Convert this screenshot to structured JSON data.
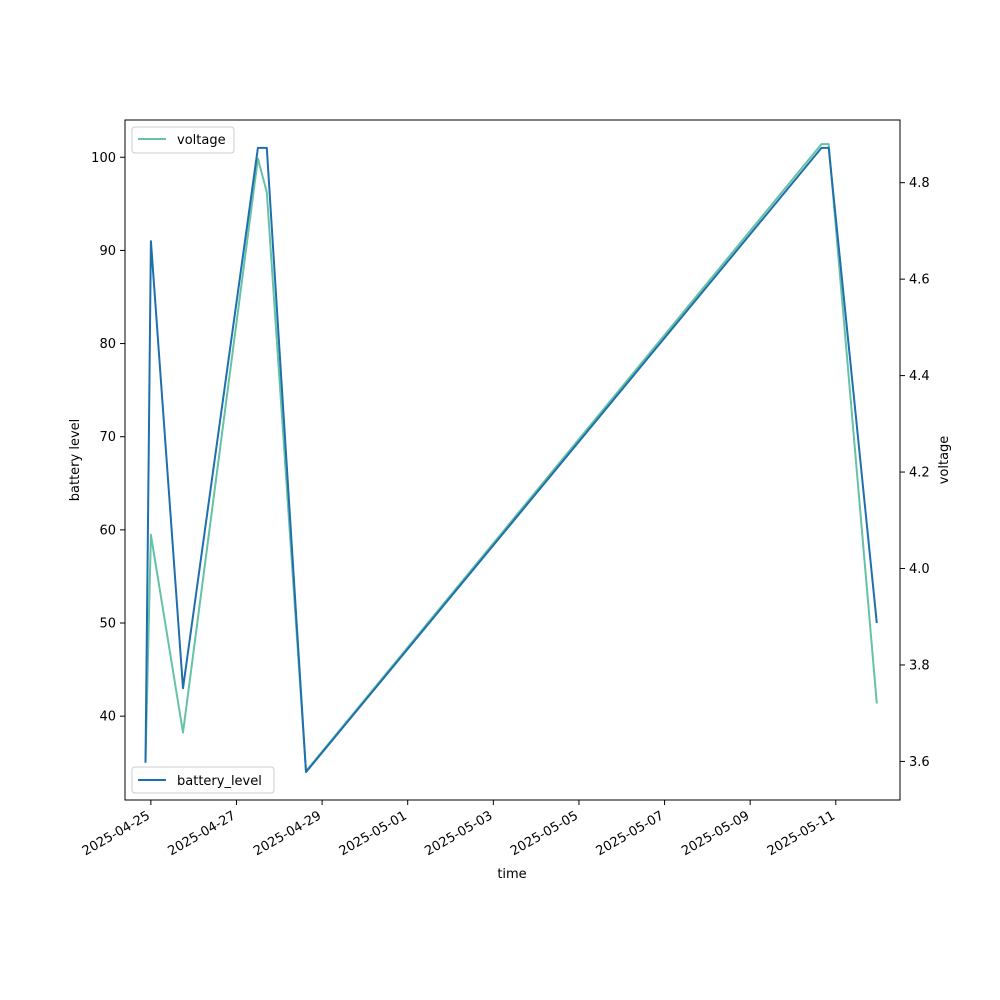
{
  "chart_data": {
    "type": "line",
    "xlabel": "time",
    "x_tick_labels": [
      "2025-04-25",
      "2025-04-27",
      "2025-04-29",
      "2025-05-01",
      "2025-05-03",
      "2025-05-05",
      "2025-05-07",
      "2025-05-09",
      "2025-05-11"
    ],
    "x_tick_dates": [
      "2025-04-25",
      "2025-04-27",
      "2025-04-29",
      "2025-05-01",
      "2025-05-03",
      "2025-05-05",
      "2025-05-07",
      "2025-05-09",
      "2025-05-11"
    ],
    "xlim": [
      "2025-04-24T09:30",
      "2025-05-12T12:00"
    ],
    "y_left": {
      "label": "battery level",
      "ylim": [
        31,
        104
      ],
      "ticks": [
        40,
        50,
        60,
        70,
        80,
        90,
        100
      ],
      "tick_labels": [
        "40",
        "50",
        "60",
        "70",
        "80",
        "90",
        "100"
      ]
    },
    "y_right": {
      "label": "voltage",
      "ylim": [
        3.52,
        4.93
      ],
      "ticks": [
        3.6,
        3.8,
        4.0,
        4.2,
        4.4,
        4.6,
        4.8
      ],
      "tick_labels": [
        "3.6",
        "3.8",
        "4.0",
        "4.2",
        "4.4",
        "4.6",
        "4.8"
      ]
    },
    "series": [
      {
        "name": "battery_level",
        "axis": "left",
        "color": "#1f6fad",
        "points": [
          {
            "x": "2025-04-24T21:00",
            "y": 35
          },
          {
            "x": "2025-04-25T00:00",
            "y": 91
          },
          {
            "x": "2025-04-25T18:00",
            "y": 43
          },
          {
            "x": "2025-04-27T12:00",
            "y": 101
          },
          {
            "x": "2025-04-27T17:00",
            "y": 101
          },
          {
            "x": "2025-04-28T15:00",
            "y": 34
          },
          {
            "x": "2025-05-10T16:00",
            "y": 101
          },
          {
            "x": "2025-05-10T20:00",
            "y": 101
          },
          {
            "x": "2025-05-11T23:00",
            "y": 50
          }
        ]
      },
      {
        "name": "voltage",
        "axis": "right",
        "color": "#66c2a5",
        "points": [
          {
            "x": "2025-04-24T21:00",
            "y": 3.6
          },
          {
            "x": "2025-04-25T00:00",
            "y": 4.07
          },
          {
            "x": "2025-04-25T18:00",
            "y": 3.66
          },
          {
            "x": "2025-04-27T12:00",
            "y": 4.85
          },
          {
            "x": "2025-04-27T17:00",
            "y": 4.78
          },
          {
            "x": "2025-04-28T15:00",
            "y": 3.58
          },
          {
            "x": "2025-05-10T16:00",
            "y": 4.88
          },
          {
            "x": "2025-05-10T20:00",
            "y": 4.88
          },
          {
            "x": "2025-05-11T23:00",
            "y": 3.72
          }
        ]
      }
    ],
    "legends": [
      {
        "series": "voltage",
        "placement": "upper left"
      },
      {
        "series": "battery_level",
        "placement": "lower left"
      }
    ],
    "grid": false
  }
}
